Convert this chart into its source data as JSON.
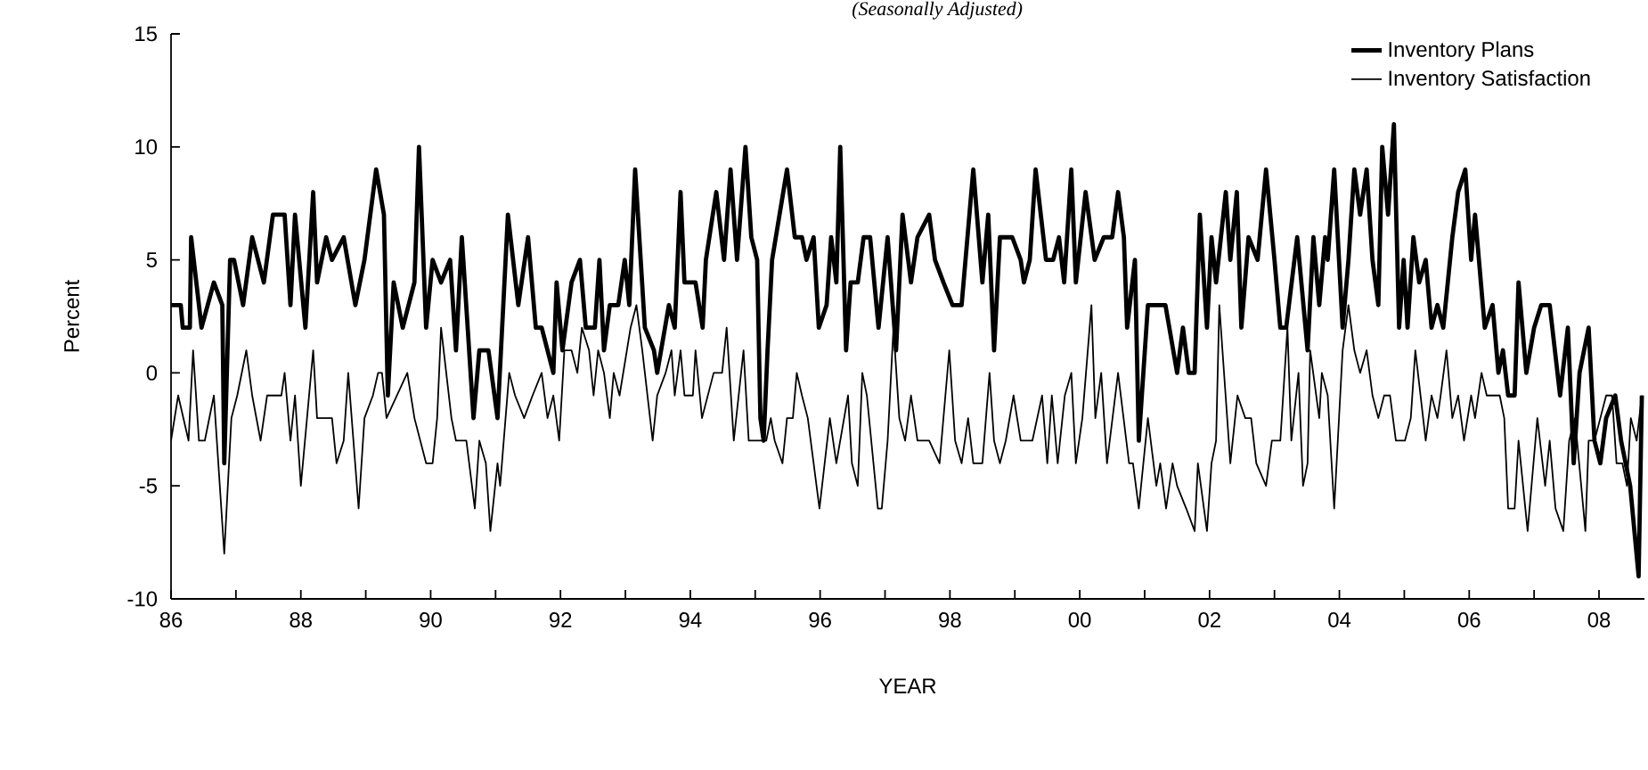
{
  "chart_data": {
    "type": "line",
    "subtitle": "(Seasonally Adjusted)",
    "xlabel": "YEAR",
    "ylabel": "Percent",
    "legend": "top right",
    "xlim": [
      1986,
      2008.7
    ],
    "ylim": [
      -10,
      15
    ],
    "yticks": [
      {
        "value": -10,
        "label": "-10"
      },
      {
        "value": -5,
        "label": "-5"
      },
      0,
      5,
      10,
      15
    ],
    "xticks": [
      {
        "value": 1986,
        "label": "86"
      },
      {
        "value": 1987,
        "label": null
      },
      {
        "value": 1988,
        "label": "88"
      },
      {
        "value": 1989,
        "label": null
      },
      {
        "value": 1990,
        "label": "90"
      },
      {
        "value": 1991,
        "label": null
      },
      {
        "value": 1992,
        "label": "92"
      },
      {
        "value": 1993,
        "label": null
      },
      {
        "value": 1994,
        "label": "94"
      },
      {
        "value": 1995,
        "label": null
      },
      {
        "value": 1996,
        "label": "96"
      },
      {
        "value": 1997,
        "label": null
      },
      {
        "value": 1998,
        "label": "98"
      },
      {
        "value": 1999,
        "label": null
      },
      {
        "value": 2000,
        "label": "00"
      },
      {
        "value": 2001,
        "label": null
      },
      {
        "value": 2002,
        "label": "02"
      },
      {
        "value": 2003,
        "label": null
      },
      {
        "value": 2004,
        "label": "04"
      },
      {
        "value": 2005,
        "label": null
      },
      {
        "value": 2006,
        "label": "06"
      },
      {
        "value": 2007,
        "label": null
      },
      {
        "value": 2008,
        "label": "08"
      }
    ],
    "series": [
      {
        "name": "Inventory Plans",
        "color": "#000000",
        "x": [
          1986.0,
          1986.15,
          1986.18,
          1986.29,
          1986.31,
          1986.47,
          1986.66,
          1986.79,
          1986.82,
          1986.91,
          1986.97,
          1987.11,
          1987.25,
          1987.43,
          1987.57,
          1987.75,
          1987.84,
          1987.91,
          1988.07,
          1988.19,
          1988.25,
          1988.39,
          1988.48,
          1988.66,
          1988.84,
          1988.98,
          1989.16,
          1989.28,
          1989.34,
          1989.43,
          1989.57,
          1989.75,
          1989.82,
          1989.93,
          1990.03,
          1990.16,
          1990.3,
          1990.39,
          1990.48,
          1990.66,
          1990.75,
          1990.89,
          1991.03,
          1991.19,
          1991.35,
          1991.5,
          1991.62,
          1991.71,
          1991.89,
          1991.94,
          1992.03,
          1992.17,
          1992.3,
          1992.39,
          1992.53,
          1992.6,
          1992.67,
          1992.76,
          1992.89,
          1992.99,
          1993.06,
          1993.15,
          1993.3,
          1993.44,
          1993.49,
          1993.67,
          1993.76,
          1993.85,
          1993.91,
          1994.08,
          1994.19,
          1994.24,
          1994.4,
          1994.52,
          1994.62,
          1994.72,
          1994.85,
          1994.94,
          1995.03,
          1995.08,
          1995.13,
          1995.19,
          1995.26,
          1995.49,
          1995.61,
          1995.72,
          1995.79,
          1995.9,
          1995.98,
          1996.1,
          1996.17,
          1996.25,
          1996.31,
          1996.4,
          1996.47,
          1996.58,
          1996.67,
          1996.77,
          1996.9,
          1997.04,
          1997.17,
          1997.27,
          1997.4,
          1997.5,
          1997.68,
          1997.77,
          1997.9,
          1998.04,
          1998.18,
          1998.36,
          1998.5,
          1998.59,
          1998.68,
          1998.77,
          1998.96,
          1999.09,
          1999.14,
          1999.23,
          1999.32,
          1999.48,
          1999.59,
          1999.68,
          1999.76,
          1999.87,
          1999.94,
          2000.09,
          2000.23,
          2000.37,
          2000.5,
          2000.59,
          2000.68,
          2000.73,
          2000.85,
          2000.91,
          2001.05,
          2001.32,
          2001.5,
          2001.59,
          2001.68,
          2001.77,
          2001.85,
          2001.96,
          2002.03,
          2002.1,
          2002.25,
          2002.32,
          2002.42,
          2002.49,
          2002.6,
          2002.74,
          2002.87,
          2003.0,
          2003.09,
          2003.18,
          2003.35,
          2003.51,
          2003.6,
          2003.69,
          2003.78,
          2003.82,
          2003.92,
          2004.05,
          2004.14,
          2004.23,
          2004.32,
          2004.42,
          2004.51,
          2004.6,
          2004.66,
          2004.75,
          2004.84,
          2004.92,
          2004.99,
          2005.05,
          2005.14,
          2005.23,
          2005.33,
          2005.42,
          2005.51,
          2005.6,
          2005.74,
          2005.83,
          2005.94,
          2006.03,
          2006.09,
          2006.24,
          2006.36,
          2006.45,
          2006.52,
          2006.6,
          2006.7,
          2006.76,
          2006.88,
          2007.0,
          2007.11,
          2007.24,
          2007.4,
          2007.52,
          2007.61,
          2007.7,
          2007.84,
          2007.93,
          2008.02,
          2008.11,
          2008.25,
          2008.34,
          2008.48,
          2008.61,
          2008.66
        ],
        "values": [
          3,
          3,
          2,
          2,
          6,
          2,
          4,
          3,
          -4,
          5,
          5,
          3,
          6,
          4,
          7,
          7,
          3,
          7,
          2,
          8,
          4,
          6,
          5,
          6,
          3,
          5,
          9,
          7,
          -1,
          4,
          2,
          4,
          10,
          2,
          5,
          4,
          5,
          1,
          6,
          -2,
          1,
          1,
          -2,
          7,
          3,
          6,
          2,
          2,
          0,
          4,
          1,
          4,
          5,
          2,
          2,
          5,
          1,
          3,
          3,
          5,
          3,
          9,
          2,
          1,
          0,
          3,
          2,
          8,
          4,
          4,
          2,
          5,
          8,
          5,
          9,
          5,
          10,
          6,
          5,
          -2,
          -3,
          1,
          5,
          9,
          6,
          6,
          5,
          6,
          2,
          3,
          6,
          4,
          10,
          1,
          4,
          4,
          6,
          6,
          2,
          6,
          1,
          7,
          4,
          6,
          7,
          5,
          4,
          3,
          3,
          9,
          4,
          7,
          1,
          6,
          6,
          5,
          4,
          5,
          9,
          5,
          5,
          6,
          4,
          9,
          4,
          8,
          5,
          6,
          6,
          8,
          6,
          2,
          5,
          -3,
          3,
          3,
          0,
          2,
          0,
          0,
          7,
          2,
          6,
          4,
          8,
          5,
          8,
          2,
          6,
          5,
          9,
          5,
          2,
          2,
          6,
          1,
          6,
          3,
          6,
          5,
          9,
          2,
          5,
          9,
          7,
          9,
          5,
          3,
          10,
          7,
          11,
          2,
          5,
          2,
          6,
          4,
          5,
          2,
          3,
          2,
          6,
          8,
          9,
          5,
          7,
          2,
          3,
          0,
          1,
          -1,
          -1,
          4,
          0,
          2,
          3,
          3,
          -1,
          2,
          -4,
          0,
          2,
          -3,
          -4,
          -2,
          -1,
          -3,
          -5,
          -9,
          -1
        ]
      },
      {
        "name": "Inventory Satisfaction",
        "color": "#000000",
        "x": [
          1986.0,
          1986.11,
          1986.27,
          1986.34,
          1986.43,
          1986.52,
          1986.66,
          1986.82,
          1986.93,
          1987.02,
          1987.16,
          1987.25,
          1987.38,
          1987.48,
          1987.7,
          1987.75,
          1987.84,
          1987.91,
          1988.0,
          1988.19,
          1988.25,
          1988.48,
          1988.55,
          1988.66,
          1988.73,
          1988.89,
          1988.98,
          1989.11,
          1989.19,
          1989.25,
          1989.32,
          1989.48,
          1989.64,
          1989.75,
          1989.93,
          1990.03,
          1990.1,
          1990.16,
          1990.32,
          1990.39,
          1990.55,
          1990.68,
          1990.75,
          1990.85,
          1990.92,
          1991.03,
          1991.07,
          1991.21,
          1991.3,
          1991.44,
          1991.57,
          1991.71,
          1991.8,
          1991.89,
          1991.98,
          1992.06,
          1992.17,
          1992.26,
          1992.33,
          1992.44,
          1992.51,
          1992.58,
          1992.67,
          1992.76,
          1992.82,
          1992.91,
          1993.08,
          1993.17,
          1993.26,
          1993.42,
          1993.49,
          1993.62,
          1993.71,
          1993.76,
          1993.85,
          1993.91,
          1994.04,
          1994.08,
          1994.18,
          1994.36,
          1994.49,
          1994.56,
          1994.67,
          1994.82,
          1994.9,
          1995.06,
          1995.17,
          1995.24,
          1995.3,
          1995.42,
          1995.49,
          1995.58,
          1995.64,
          1995.72,
          1995.81,
          1995.99,
          1996.15,
          1996.25,
          1996.43,
          1996.49,
          1996.58,
          1996.65,
          1996.72,
          1996.89,
          1996.95,
          1997.04,
          1997.13,
          1997.22,
          1997.31,
          1997.4,
          1997.5,
          1997.59,
          1997.68,
          1997.84,
          1997.99,
          1998.08,
          1998.18,
          1998.28,
          1998.36,
          1998.5,
          1998.61,
          1998.68,
          1998.77,
          1998.86,
          1998.98,
          1999.09,
          1999.27,
          1999.42,
          1999.5,
          1999.57,
          1999.66,
          1999.77,
          1999.87,
          1999.94,
          2000.04,
          2000.18,
          2000.24,
          2000.33,
          2000.42,
          2000.59,
          2000.76,
          2000.82,
          2000.91,
          2001.05,
          2001.18,
          2001.24,
          2001.33,
          2001.43,
          2001.5,
          2001.64,
          2001.77,
          2001.82,
          2001.96,
          2002.03,
          2002.1,
          2002.15,
          2002.32,
          2002.43,
          2002.55,
          2002.64,
          2002.72,
          2002.87,
          2002.96,
          2003.09,
          2003.2,
          2003.26,
          2003.37,
          2003.44,
          2003.51,
          2003.55,
          2003.69,
          2003.73,
          2003.82,
          2003.92,
          2004.05,
          2004.14,
          2004.23,
          2004.32,
          2004.42,
          2004.51,
          2004.6,
          2004.69,
          2004.78,
          2004.87,
          2005.01,
          2005.1,
          2005.17,
          2005.33,
          2005.42,
          2005.51,
          2005.56,
          2005.65,
          2005.74,
          2005.83,
          2005.92,
          2006.03,
          2006.09,
          2006.19,
          2006.27,
          2006.38,
          2006.47,
          2006.54,
          2006.6,
          2006.7,
          2006.76,
          2006.9,
          2007.05,
          2007.17,
          2007.24,
          2007.33,
          2007.45,
          2007.54,
          2007.63,
          2007.79,
          2007.84,
          2007.93,
          2008.02,
          2008.11,
          2008.2,
          2008.27,
          2008.36,
          2008.43,
          2008.49,
          2008.58,
          2008.66
        ],
        "values": [
          -3,
          -1,
          -3,
          1,
          -3,
          -3,
          -1,
          -8,
          -2,
          -1,
          1,
          -1,
          -3,
          -1,
          -1,
          0,
          -3,
          -1,
          -5,
          1,
          -2,
          -2,
          -4,
          -3,
          0,
          -6,
          -2,
          -1,
          0,
          0,
          -2,
          -1,
          0,
          -2,
          -4,
          -4,
          -2,
          2,
          -2,
          -3,
          -3,
          -6,
          -3,
          -4,
          -7,
          -4,
          -5,
          0,
          -1,
          -2,
          -1,
          0,
          -2,
          -1,
          -3,
          1,
          1,
          0,
          2,
          1,
          -1,
          1,
          0,
          -2,
          0,
          -1,
          2,
          3,
          1,
          -3,
          -1,
          0,
          1,
          -1,
          1,
          -1,
          -1,
          1,
          -2,
          0,
          0,
          2,
          -3,
          1,
          -3,
          -3,
          -3,
          -2,
          -3,
          -4,
          -2,
          -2,
          0,
          -1,
          -2,
          -6,
          -2,
          -4,
          -1,
          -4,
          -5,
          0,
          -1,
          -6,
          -6,
          -3,
          2,
          -2,
          -3,
          -1,
          -3,
          -3,
          -3,
          -4,
          1,
          -3,
          -4,
          -2,
          -4,
          -4,
          0,
          -3,
          -4,
          -3,
          -1,
          -3,
          -3,
          -1,
          -4,
          -1,
          -4,
          -1,
          0,
          -4,
          -2,
          3,
          -2,
          0,
          -4,
          0,
          -4,
          -4,
          -6,
          -2,
          -5,
          -4,
          -6,
          -4,
          -5,
          -6,
          -7,
          -4,
          -7,
          -4,
          -3,
          3,
          -4,
          -1,
          -2,
          -2,
          -4,
          -5,
          -3,
          -3,
          2,
          -3,
          0,
          -5,
          -4,
          1,
          -2,
          0,
          -1,
          -6,
          1,
          3,
          1,
          0,
          1,
          -1,
          -2,
          -1,
          -1,
          -3,
          -3,
          -2,
          1,
          -3,
          -1,
          -2,
          -1,
          1,
          -2,
          -1,
          -3,
          -1,
          -2,
          0,
          -1,
          -1,
          -1,
          -2,
          -6,
          -6,
          -3,
          -7,
          -2,
          -5,
          -3,
          -6,
          -7,
          -3,
          -2,
          -7,
          -3,
          -3,
          -2,
          -1,
          -1,
          -4,
          -4,
          -5,
          -2,
          -3,
          -1
        ]
      }
    ]
  }
}
